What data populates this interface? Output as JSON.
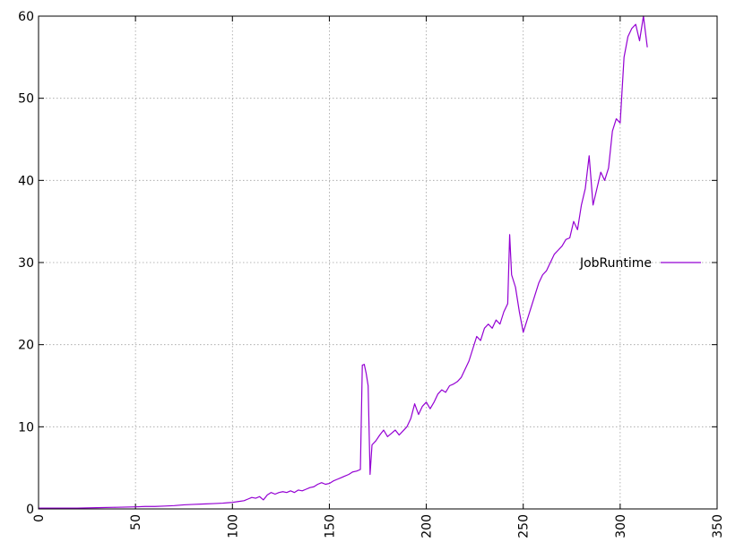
{
  "chart_data": {
    "type": "line",
    "title": "",
    "xlabel": "",
    "ylabel": "",
    "xlim": [
      0,
      350
    ],
    "ylim": [
      0,
      60
    ],
    "x_ticks": [
      0,
      50,
      100,
      150,
      200,
      250,
      300,
      350
    ],
    "y_ticks": [
      0,
      10,
      20,
      30,
      40,
      50,
      60
    ],
    "grid": true,
    "legend_position": "right",
    "colors": {
      "series": "#9400d3",
      "grid": "#a0a0a0",
      "axis": "#000000"
    },
    "series": [
      {
        "name": "JobRuntime",
        "x": [
          0,
          10,
          20,
          30,
          40,
          50,
          55,
          60,
          65,
          70,
          75,
          80,
          85,
          90,
          95,
          100,
          103,
          106,
          108,
          110,
          112,
          114,
          116,
          118,
          120,
          122,
          124,
          126,
          128,
          130,
          132,
          134,
          136,
          138,
          140,
          142,
          144,
          146,
          148,
          150,
          152,
          154,
          156,
          158,
          160,
          162,
          164,
          166,
          167,
          168,
          169,
          170,
          171,
          172,
          174,
          176,
          178,
          180,
          182,
          184,
          186,
          188,
          190,
          192,
          194,
          196,
          198,
          200,
          202,
          204,
          206,
          208,
          210,
          212,
          214,
          216,
          218,
          220,
          222,
          224,
          226,
          228,
          230,
          232,
          234,
          236,
          238,
          240,
          242,
          243,
          244,
          246,
          248,
          250,
          252,
          254,
          256,
          258,
          260,
          262,
          264,
          266,
          268,
          270,
          272,
          274,
          276,
          278,
          280,
          282,
          284,
          286,
          288,
          290,
          292,
          294,
          296,
          298,
          300,
          302,
          304,
          306,
          308,
          310,
          312,
          314
        ],
        "y": [
          0.1,
          0.1,
          0.1,
          0.15,
          0.2,
          0.25,
          0.3,
          0.3,
          0.35,
          0.4,
          0.5,
          0.55,
          0.6,
          0.65,
          0.7,
          0.8,
          0.9,
          1.0,
          1.2,
          1.4,
          1.3,
          1.5,
          1.1,
          1.7,
          2.0,
          1.8,
          2.0,
          2.1,
          2.0,
          2.2,
          2.0,
          2.3,
          2.2,
          2.4,
          2.6,
          2.7,
          3.0,
          3.2,
          3.0,
          3.1,
          3.4,
          3.6,
          3.8,
          4.0,
          4.2,
          4.5,
          4.6,
          4.8,
          17.5,
          17.6,
          16.5,
          15.0,
          4.2,
          7.8,
          8.3,
          9.0,
          9.6,
          8.8,
          9.2,
          9.6,
          9.0,
          9.5,
          10.0,
          11.0,
          12.8,
          11.5,
          12.5,
          13.0,
          12.2,
          13.0,
          14.0,
          14.5,
          14.2,
          15.0,
          15.2,
          15.5,
          16.0,
          17.0,
          18.0,
          19.5,
          21.0,
          20.5,
          22.0,
          22.5,
          22.0,
          23.0,
          22.5,
          24.0,
          25.0,
          33.4,
          28.5,
          27.0,
          24.0,
          21.5,
          23.0,
          24.5,
          26.0,
          27.5,
          28.5,
          29.0,
          30.0,
          31.0,
          31.5,
          32.0,
          32.8,
          33.0,
          35.0,
          34.0,
          37.0,
          39.0,
          43.0,
          37.0,
          39.0,
          41.0,
          40.0,
          41.5,
          46.0,
          47.5,
          47.0,
          55.0,
          57.5,
          58.5,
          59.0,
          57.0,
          60.0,
          56.2
        ]
      }
    ]
  }
}
